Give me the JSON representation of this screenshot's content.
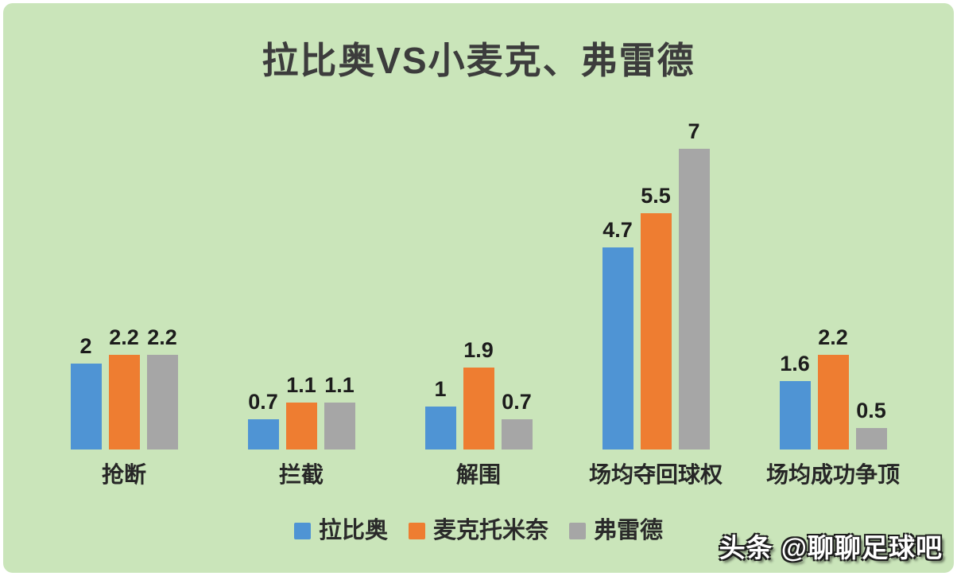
{
  "title": "拉比奥VS小麦克、弗雷德",
  "watermark": "头条 @聊聊足球吧",
  "colors": {
    "card_background": "#cae5ba",
    "page_border": "#ffffff",
    "title_text": "#3c3c3c",
    "label_text": "#1c1c1c",
    "series_blue": "#4f94d4",
    "series_orange": "#ee7d31",
    "series_gray": "#a6a6a6"
  },
  "chart_data": {
    "type": "bar",
    "title": "拉比奥VS小麦克、弗雷德",
    "categories": [
      "抢断",
      "拦截",
      "解围",
      "场均夺回球权",
      "场均成功争顶"
    ],
    "series": [
      {
        "name": "拉比奥",
        "color": "#4f94d4",
        "values": [
          2,
          0.7,
          1,
          4.7,
          1.6
        ]
      },
      {
        "name": "麦克托米奈",
        "color": "#ee7d31",
        "values": [
          2.2,
          1.1,
          1.9,
          5.5,
          2.2
        ]
      },
      {
        "name": "弗雷德",
        "color": "#a6a6a6",
        "values": [
          2.2,
          1.1,
          0.7,
          7,
          0.5
        ]
      }
    ],
    "xlabel": "",
    "ylabel": "",
    "ylim": [
      0,
      7
    ],
    "grid": false,
    "data_labels": true,
    "legend_position": "bottom"
  }
}
